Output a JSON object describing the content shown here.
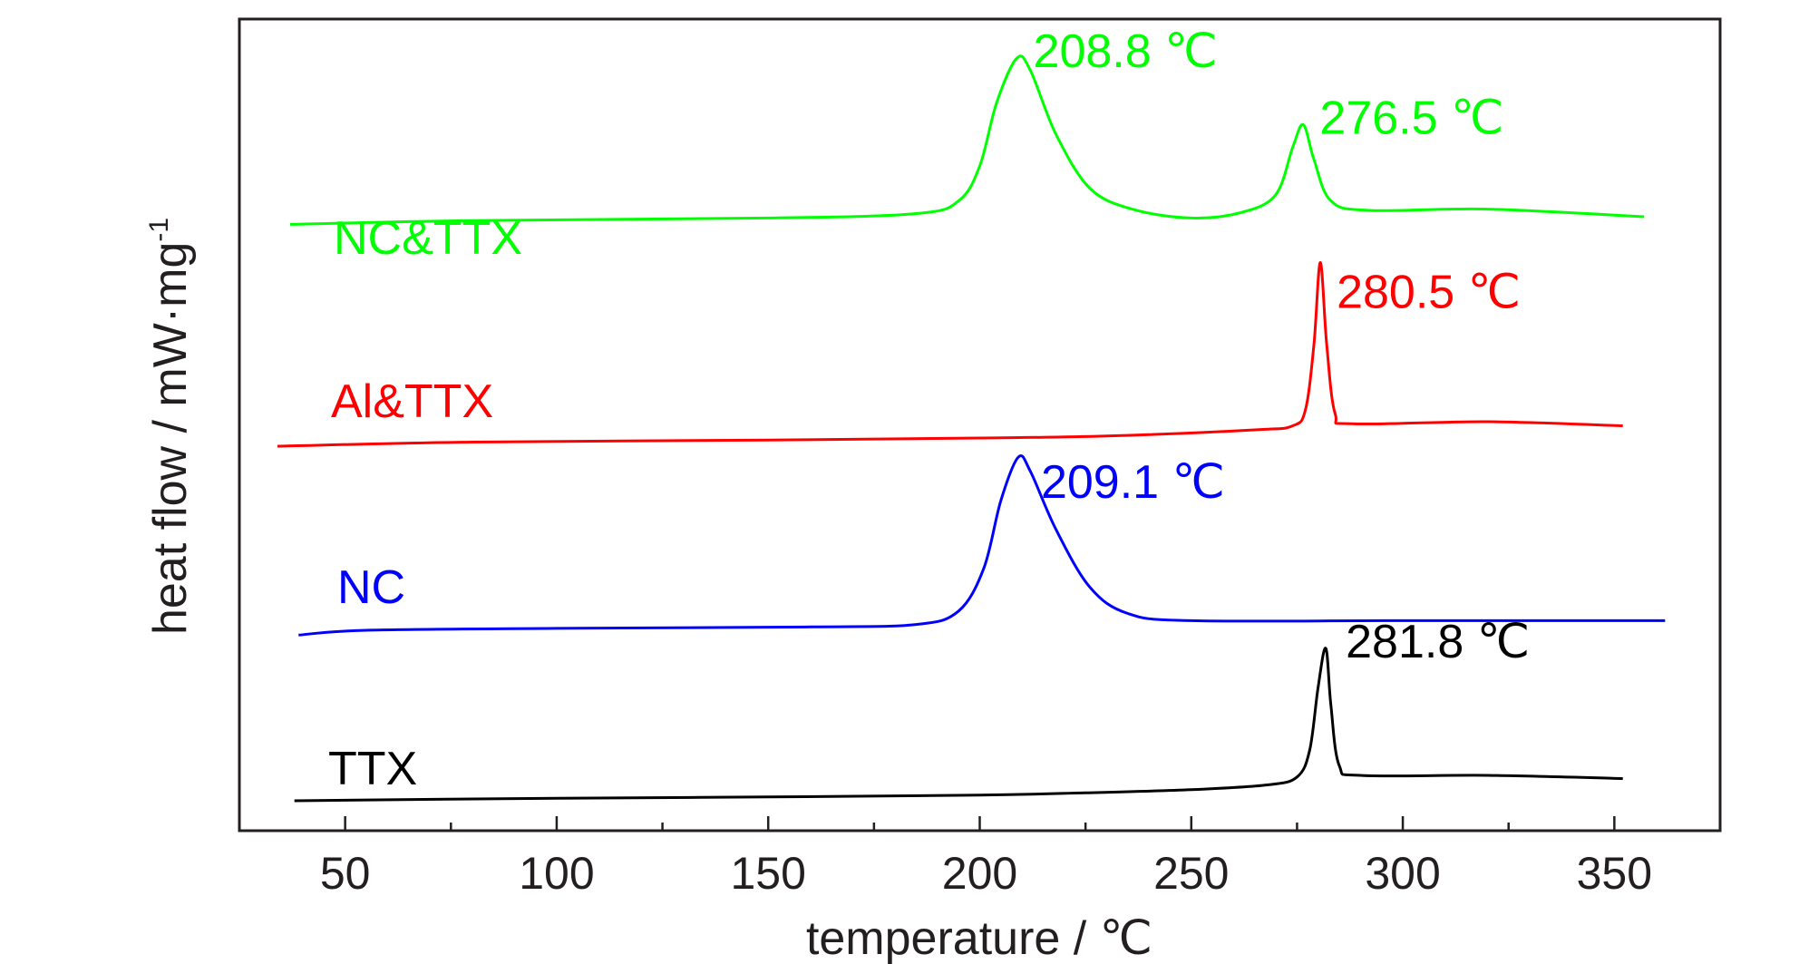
{
  "chart_data": {
    "type": "line",
    "title": "",
    "xlabel": "temperature / ℃",
    "ylabel": "heat flow / mW·mg",
    "ylabel_superscript": "-1",
    "xlim": [
      25,
      375
    ],
    "x_ticks": [
      50,
      100,
      150,
      200,
      250,
      300,
      350
    ],
    "y_ticks_shown": false,
    "grid": false,
    "legend": "inline labels",
    "series": [
      {
        "name": "NC&TTX",
        "color": "#00ff00",
        "points": [
          [
            37,
            0.78
          ],
          [
            80,
            0.84
          ],
          [
            150,
            0.88
          ],
          [
            185,
            0.95
          ],
          [
            195,
            1.15
          ],
          [
            200,
            1.7
          ],
          [
            204,
            2.7
          ],
          [
            208.8,
            3.4
          ],
          [
            212,
            3.2
          ],
          [
            218,
            2.2
          ],
          [
            226,
            1.35
          ],
          [
            236,
            1.02
          ],
          [
            250,
            0.88
          ],
          [
            262,
            0.97
          ],
          [
            270,
            1.25
          ],
          [
            274,
            2.0
          ],
          [
            276.5,
            2.35
          ],
          [
            279,
            1.8
          ],
          [
            283,
            1.15
          ],
          [
            292,
            1.0
          ],
          [
            320,
            1.02
          ],
          [
            357,
            0.9
          ]
        ],
        "peaks": [
          {
            "x": 208.8,
            "label": "208.8 ℃"
          },
          {
            "x": 276.5,
            "label": "276.5 ℃"
          }
        ]
      },
      {
        "name": "Al&TTX",
        "color": "#ff0000",
        "points": [
          [
            34,
            0.0
          ],
          [
            80,
            0.1
          ],
          [
            150,
            0.15
          ],
          [
            200,
            0.2
          ],
          [
            230,
            0.25
          ],
          [
            265,
            0.4
          ],
          [
            274,
            0.5
          ],
          [
            277,
            0.9
          ],
          [
            279,
            2.5
          ],
          [
            280.5,
            4.5
          ],
          [
            282,
            2.5
          ],
          [
            284,
            0.8
          ],
          [
            288,
            0.55
          ],
          [
            320,
            0.6
          ],
          [
            352,
            0.5
          ]
        ],
        "peaks": [
          {
            "x": 280.5,
            "label": "280.5 ℃"
          }
        ]
      },
      {
        "name": "NC",
        "color": "#0000ff",
        "points": [
          [
            39,
            -0.1
          ],
          [
            55,
            0.0
          ],
          [
            100,
            0.04
          ],
          [
            160,
            0.07
          ],
          [
            185,
            0.12
          ],
          [
            195,
            0.4
          ],
          [
            201,
            1.3
          ],
          [
            205,
            2.7
          ],
          [
            209.1,
            3.6
          ],
          [
            212,
            3.3
          ],
          [
            218,
            2.1
          ],
          [
            226,
            0.9
          ],
          [
            235,
            0.35
          ],
          [
            250,
            0.2
          ],
          [
            300,
            0.2
          ],
          [
            362,
            0.2
          ]
        ],
        "peaks": [
          {
            "x": 209.1,
            "label": "209.1 ℃"
          }
        ]
      },
      {
        "name": "TTX",
        "color": "#000000",
        "points": [
          [
            38,
            0.0
          ],
          [
            100,
            0.08
          ],
          [
            150,
            0.12
          ],
          [
            200,
            0.18
          ],
          [
            225,
            0.25
          ],
          [
            250,
            0.35
          ],
          [
            268,
            0.5
          ],
          [
            275,
            0.75
          ],
          [
            278,
            1.6
          ],
          [
            280,
            3.6
          ],
          [
            281.8,
            4.8
          ],
          [
            283,
            3.0
          ],
          [
            285,
            1.1
          ],
          [
            290,
            0.8
          ],
          [
            320,
            0.8
          ],
          [
            352,
            0.7
          ]
        ],
        "peaks": [
          {
            "x": 281.8,
            "label": "281.8 ℃"
          }
        ]
      }
    ]
  }
}
